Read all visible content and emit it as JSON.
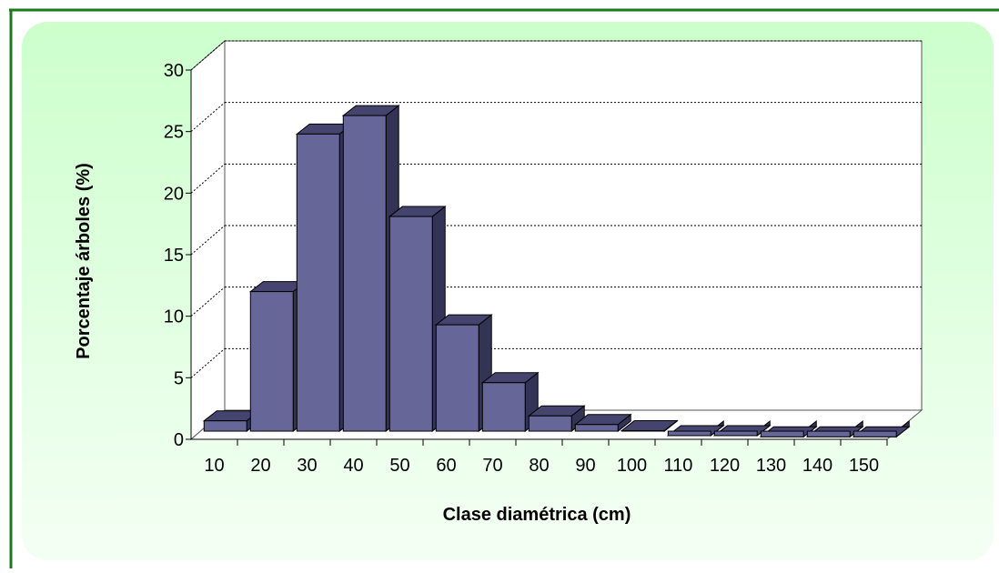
{
  "chart_data": {
    "type": "bar3d",
    "xlabel": "Clase diamétrica (cm)",
    "ylabel": "Porcentaje árboles (%)",
    "categories": [
      "10",
      "20",
      "30",
      "40",
      "50",
      "60",
      "70",
      "80",
      "90",
      "100",
      "110",
      "120",
      "130",
      "140",
      "150"
    ],
    "values": [
      1.5,
      12,
      24.8,
      26.3,
      18.1,
      9.3,
      4.6,
      1.9,
      1.2,
      0.7,
      0.3,
      0.3,
      0.2,
      0.2,
      0.2
    ],
    "color": "#666699",
    "ylim": [
      0,
      30
    ],
    "yticks": [
      0,
      5,
      10,
      15,
      20,
      25,
      30
    ],
    "grid": true
  }
}
